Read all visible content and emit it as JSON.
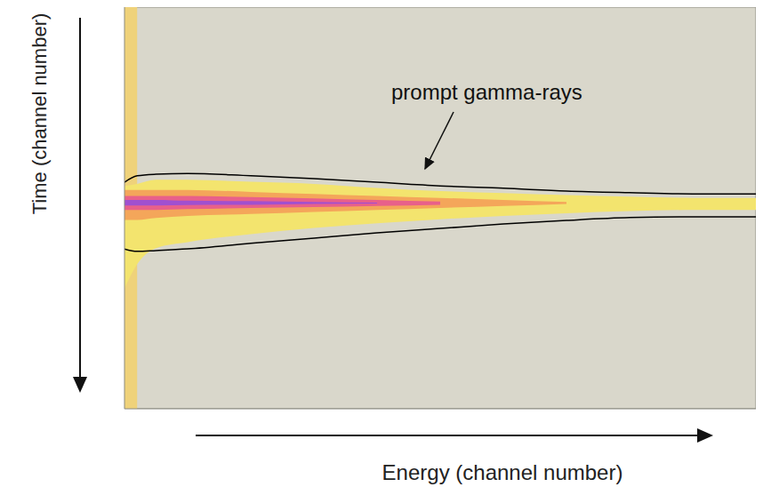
{
  "chart_data": {
    "type": "heatmap",
    "x_label": "Energy (channel number)",
    "y_label": "Time (channel number)",
    "annotation": "prompt gamma-rays",
    "tick_labels": false,
    "xlim": [
      0,
      100
    ],
    "ylim": [
      0,
      100
    ],
    "x": [
      0,
      2,
      5,
      10,
      20,
      30,
      40,
      50,
      60,
      70,
      80,
      90,
      100
    ],
    "bands": [
      {
        "color": "#efd27a",
        "upper": [
          0,
          0,
          null,
          null,
          null,
          null,
          null,
          null,
          null,
          null,
          null,
          null,
          null
        ],
        "lower": [
          100,
          100,
          null,
          null,
          null,
          null,
          null,
          null,
          null,
          null,
          null,
          null,
          null
        ]
      },
      {
        "color": "#f3e46e",
        "upper": [
          44.5,
          44,
          43,
          43,
          43.5,
          44,
          45,
          45.8,
          46.3,
          46.8,
          47.2,
          47.5,
          47.5
        ],
        "lower": [
          70,
          64,
          60,
          58.5,
          56.5,
          55,
          53.8,
          52.8,
          52,
          51.3,
          50.8,
          50.5,
          50.5
        ]
      },
      {
        "color": "#f4a65a",
        "upper": [
          45.5,
          45.5,
          45.5,
          45.5,
          46,
          46.5,
          47,
          47.5,
          48,
          48.5,
          null,
          null,
          null
        ],
        "lower": [
          53,
          53,
          52.5,
          52,
          51.5,
          51,
          50.5,
          50,
          49.5,
          49,
          null,
          null,
          null
        ]
      },
      {
        "color": "#e8608a",
        "upper": [
          47,
          47,
          47,
          47,
          47.3,
          47.6,
          48,
          48.4,
          null,
          null,
          null,
          null,
          null
        ],
        "lower": [
          50.5,
          50.5,
          50.5,
          50.3,
          50,
          49.8,
          49.5,
          49.2,
          null,
          null,
          null,
          null,
          null
        ]
      },
      {
        "color": "#a050d0",
        "upper": [
          48,
          48,
          48,
          48.2,
          48.3,
          48.5,
          48.7,
          null,
          null,
          null,
          null,
          null,
          null
        ],
        "lower": [
          49.4,
          49.4,
          49.4,
          49.3,
          49.2,
          49,
          48.9,
          null,
          null,
          null,
          null,
          null,
          null
        ]
      }
    ],
    "contour": {
      "color": "#000000",
      "upper": [
        43.6,
        42.0,
        41.6,
        41.4,
        42.0,
        42.7,
        43.6,
        44.5,
        45.1,
        45.8,
        46.2,
        46.5,
        46.5
      ],
      "lower": [
        60.2,
        60.8,
        60.6,
        60.2,
        58.8,
        57.5,
        56.2,
        55.1,
        54.0,
        53.1,
        52.4,
        52.2,
        52.2
      ]
    }
  }
}
